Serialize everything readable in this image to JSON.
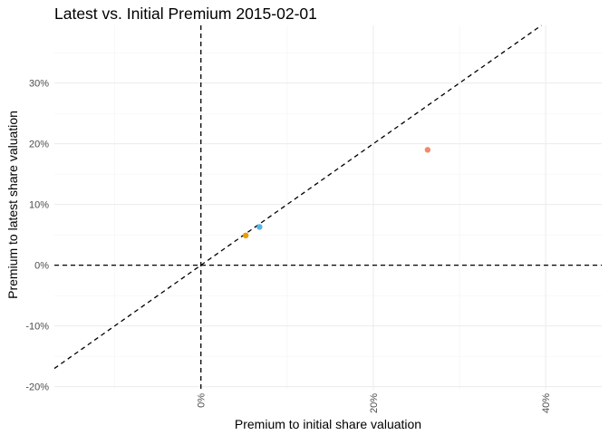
{
  "chart_data": {
    "type": "scatter",
    "title": "Latest vs. Initial Premium 2015-02-01",
    "xlabel": "Premium to initial share valuation",
    "ylabel": "Premium to latest share valuation",
    "xlim": [
      -0.17,
      0.465
    ],
    "ylim": [
      -0.205,
      0.395
    ],
    "x_ticks": [
      0,
      0.2,
      0.4
    ],
    "x_tick_labels": [
      "0%",
      "20%",
      "40%"
    ],
    "y_ticks": [
      -0.2,
      -0.1,
      0,
      0.1,
      0.2,
      0.3
    ],
    "y_tick_labels": [
      "-20%",
      "-10%",
      "0%",
      "10%",
      "20%",
      "30%"
    ],
    "x_tick_label_rotation": "vertical",
    "grid": true,
    "legend": "none",
    "reference_lines": [
      {
        "kind": "horizontal",
        "value": 0,
        "style": "dashed"
      },
      {
        "kind": "vertical",
        "value": 0,
        "style": "dashed"
      },
      {
        "kind": "diagonal",
        "slope": 1,
        "intercept": 0,
        "style": "dashed"
      }
    ],
    "points": [
      {
        "x": 0.052,
        "y": 0.049,
        "color": "#E69F00"
      },
      {
        "x": 0.068,
        "y": 0.063,
        "color": "#56B4E9"
      },
      {
        "x": 0.263,
        "y": 0.19,
        "color": "#F08A6C"
      }
    ]
  }
}
